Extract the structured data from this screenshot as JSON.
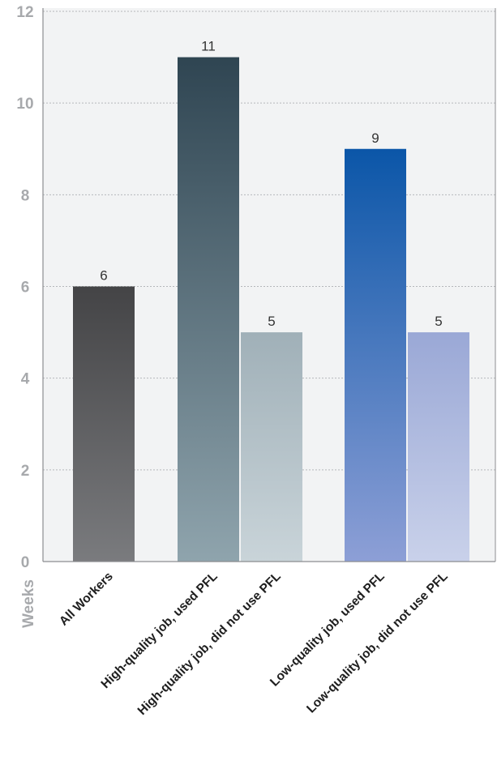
{
  "chart_data": {
    "type": "bar",
    "ylabel": "Weeks",
    "ylim": [
      0,
      12
    ],
    "yticks": [
      0,
      2,
      4,
      6,
      8,
      10,
      12
    ],
    "grid": true,
    "categories": [
      "All Workers",
      "High-quality job, used PFL",
      "High-quality job, did not use PFL",
      "Low-quality job, used PFL",
      "Low-quality job, did not use PFL"
    ],
    "values": [
      6,
      11,
      5,
      9,
      5
    ],
    "value_labels": [
      "6",
      "11",
      "5",
      "9",
      "5"
    ],
    "bar_colors": [
      [
        "#444446",
        "#7a7b7e"
      ],
      [
        "#2f4552",
        "#8fa4ad"
      ],
      [
        "#a0b0b8",
        "#c9d4d9"
      ],
      [
        "#0b56a8",
        "#8d9fd6"
      ],
      [
        "#9aa8d6",
        "#c9d1ea"
      ]
    ],
    "plot_background": "#f2f3f4"
  }
}
